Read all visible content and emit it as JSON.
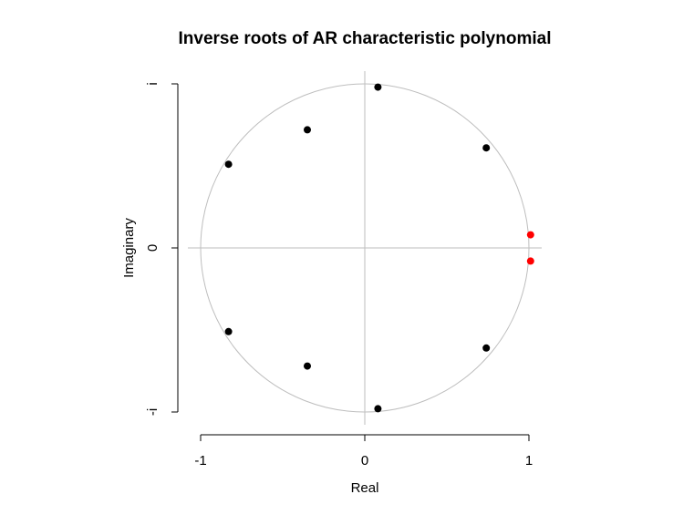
{
  "chart_data": {
    "type": "scatter",
    "title": "Inverse roots of AR characteristic polynomial",
    "xlabel": "Real",
    "ylabel": "Imaginary",
    "xlim": [
      -1,
      1
    ],
    "ylim": [
      -1,
      1
    ],
    "x_ticks": [
      {
        "value": -1,
        "label": "-1"
      },
      {
        "value": 0,
        "label": "0"
      },
      {
        "value": 1,
        "label": "1"
      }
    ],
    "y_ticks": [
      {
        "value": 1,
        "label": "i"
      },
      {
        "value": 0,
        "label": "0"
      },
      {
        "value": -1,
        "label": "-i"
      }
    ],
    "unit_circle": true,
    "reference_lines": {
      "x": 0,
      "y": 0
    },
    "colors": {
      "inside": "#000000",
      "outside": "#ff0000",
      "circle": "#bebebe",
      "reference": "#bebebe"
    },
    "series": [
      {
        "color": "#000000",
        "points": [
          {
            "x": 0.08,
            "y": 0.98
          },
          {
            "x": 0.08,
            "y": -0.98
          },
          {
            "x": -0.35,
            "y": 0.72
          },
          {
            "x": -0.35,
            "y": -0.72
          },
          {
            "x": -0.83,
            "y": 0.51
          },
          {
            "x": -0.83,
            "y": -0.51
          },
          {
            "x": 0.74,
            "y": 0.61
          },
          {
            "x": 0.74,
            "y": -0.61
          }
        ]
      },
      {
        "color": "#ff0000",
        "points": [
          {
            "x": 1.01,
            "y": 0.08
          },
          {
            "x": 1.01,
            "y": -0.08
          }
        ]
      }
    ]
  }
}
